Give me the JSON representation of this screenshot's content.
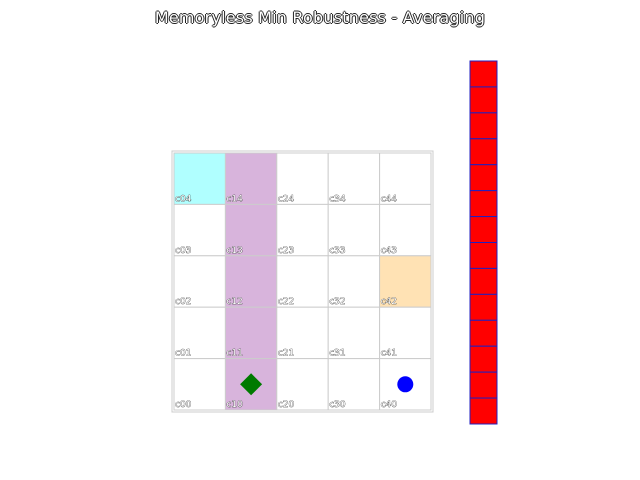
{
  "title": "Memoryless Min Robustness - Averaging",
  "grid": {
    "cols": 5,
    "rows": 5,
    "cells": [
      {
        "label": "c04",
        "col": 0,
        "row": 4,
        "fill": "#b0ffff"
      },
      {
        "label": "c14",
        "col": 1,
        "row": 4,
        "fill": "#d8b4dc"
      },
      {
        "label": "c24",
        "col": 2,
        "row": 4,
        "fill": "#ffffff"
      },
      {
        "label": "c34",
        "col": 3,
        "row": 4,
        "fill": "#ffffff"
      },
      {
        "label": "c44",
        "col": 4,
        "row": 4,
        "fill": "#ffffff"
      },
      {
        "label": "c03",
        "col": 0,
        "row": 3,
        "fill": "#ffffff"
      },
      {
        "label": "c13",
        "col": 1,
        "row": 3,
        "fill": "#d8b4dc"
      },
      {
        "label": "c23",
        "col": 2,
        "row": 3,
        "fill": "#ffffff"
      },
      {
        "label": "c33",
        "col": 3,
        "row": 3,
        "fill": "#ffffff"
      },
      {
        "label": "c43",
        "col": 4,
        "row": 3,
        "fill": "#ffffff"
      },
      {
        "label": "c02",
        "col": 0,
        "row": 2,
        "fill": "#ffffff"
      },
      {
        "label": "c12",
        "col": 1,
        "row": 2,
        "fill": "#d8b4dc"
      },
      {
        "label": "c22",
        "col": 2,
        "row": 2,
        "fill": "#ffffff"
      },
      {
        "label": "c32",
        "col": 3,
        "row": 2,
        "fill": "#ffffff"
      },
      {
        "label": "c42",
        "col": 4,
        "row": 2,
        "fill": "#ffe2b4"
      },
      {
        "label": "c01",
        "col": 0,
        "row": 1,
        "fill": "#ffffff"
      },
      {
        "label": "c11",
        "col": 1,
        "row": 1,
        "fill": "#d8b4dc"
      },
      {
        "label": "c21",
        "col": 2,
        "row": 1,
        "fill": "#ffffff"
      },
      {
        "label": "c31",
        "col": 3,
        "row": 1,
        "fill": "#ffffff"
      },
      {
        "label": "c41",
        "col": 4,
        "row": 1,
        "fill": "#ffffff"
      },
      {
        "label": "c00",
        "col": 0,
        "row": 0,
        "fill": "#ffffff"
      },
      {
        "label": "c10",
        "col": 1,
        "row": 0,
        "fill": "#d8b4dc"
      },
      {
        "label": "c20",
        "col": 2,
        "row": 0,
        "fill": "#ffffff"
      },
      {
        "label": "c30",
        "col": 3,
        "row": 0,
        "fill": "#ffffff"
      },
      {
        "label": "c40",
        "col": 4,
        "row": 0,
        "fill": "#ffffff"
      }
    ]
  },
  "agents": [
    {
      "name": "green-diamond",
      "shape": "diamond",
      "color": "#007a00",
      "col": 1,
      "row": 0
    },
    {
      "name": "blue-circle",
      "shape": "circle",
      "color": "#0000ff",
      "col": 4,
      "row": 0
    }
  ],
  "bar": {
    "segments": 14,
    "fill": "#ff0000",
    "stroke": "#2020c0"
  }
}
